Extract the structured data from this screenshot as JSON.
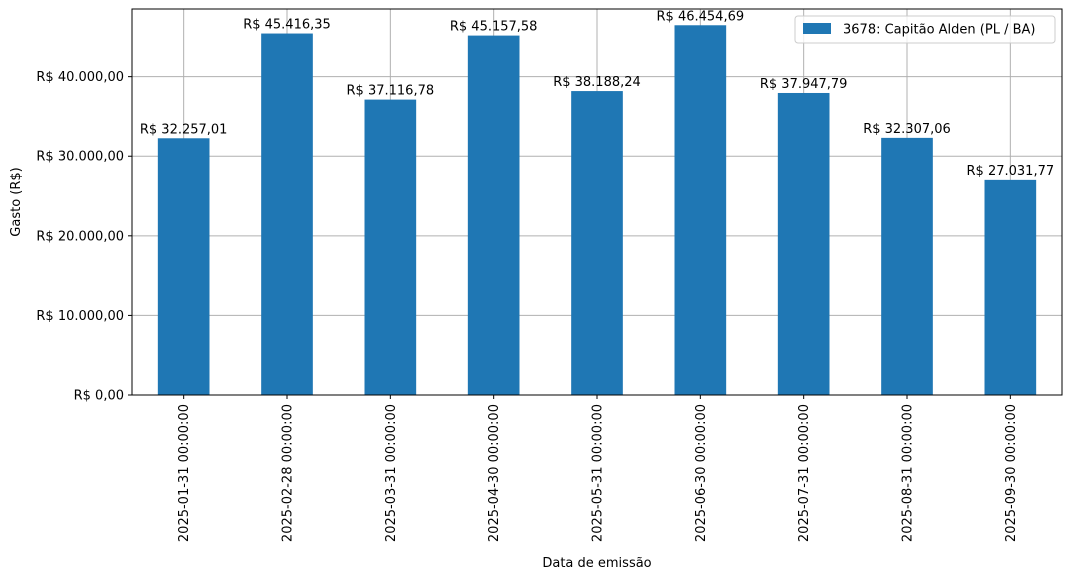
{
  "chart_data": {
    "type": "bar",
    "xlabel": "Data de emissão",
    "ylabel": "Gasto (R$)",
    "ylim": [
      0,
      48500
    ],
    "grid": true,
    "legend_position": "top-right",
    "categories": [
      "2025-01-31 00:00:00",
      "2025-02-28 00:00:00",
      "2025-03-31 00:00:00",
      "2025-04-30 00:00:00",
      "2025-05-31 00:00:00",
      "2025-06-30 00:00:00",
      "2025-07-31 00:00:00",
      "2025-08-31 00:00:00",
      "2025-09-30 00:00:00"
    ],
    "series": [
      {
        "name": "3678: Capitão Alden (PL / BA)",
        "color": "#1f77b4",
        "values": [
          32257.01,
          45416.35,
          37116.78,
          45157.58,
          38188.24,
          46454.69,
          37947.79,
          32307.06,
          27031.77
        ],
        "labels": [
          "R$ 32.257,01",
          "R$ 45.416,35",
          "R$ 37.116,78",
          "R$ 45.157,58",
          "R$ 38.188,24",
          "R$ 46.454,69",
          "R$ 37.947,79",
          "R$ 32.307,06",
          "R$ 27.031,77"
        ]
      }
    ],
    "yticks": [
      {
        "value": 0,
        "label": "R$ 0,00"
      },
      {
        "value": 10000,
        "label": "R$ 10.000,00"
      },
      {
        "value": 20000,
        "label": "R$ 20.000,00"
      },
      {
        "value": 30000,
        "label": "R$ 30.000,00"
      },
      {
        "value": 40000,
        "label": "R$ 40.000,00"
      }
    ]
  }
}
